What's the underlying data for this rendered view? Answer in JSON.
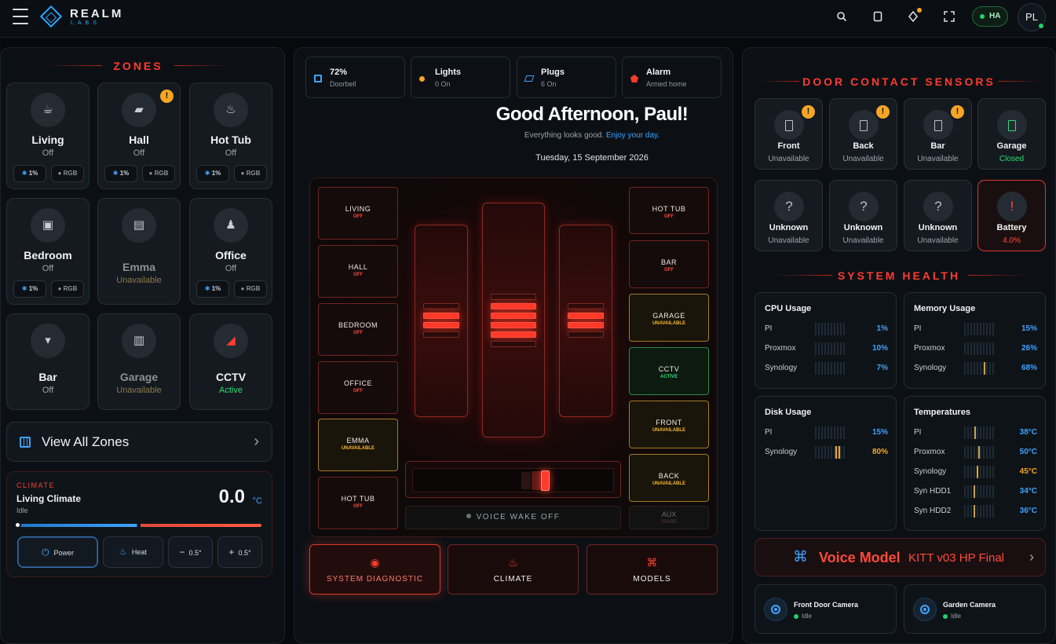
{
  "brand": {
    "name": "REALM",
    "sub": "LABS"
  },
  "header": {
    "ha_label": "HA",
    "avatar_initials": "PL"
  },
  "zones": {
    "title": "ZONES",
    "items": [
      {
        "name": "Living",
        "status": "Off",
        "dim": "1%",
        "rgb": "RGB",
        "icon": "teapot-icon"
      },
      {
        "name": "Hall",
        "status": "Off",
        "dim": "1%",
        "rgb": "RGB",
        "icon": "rug-icon",
        "warn": "!"
      },
      {
        "name": "Hot Tub",
        "status": "Off",
        "dim": "1%",
        "rgb": "RGB",
        "icon": "hot-tub-icon"
      },
      {
        "name": "Bedroom",
        "status": "Off",
        "dim": "1%",
        "rgb": "RGB",
        "icon": "frame-icon"
      },
      {
        "name": "Emma",
        "status": "Unavailable",
        "icon": "dresser-icon"
      },
      {
        "name": "Office",
        "status": "Off",
        "dim": "1%",
        "rgb": "RGB",
        "icon": "desk-lamp-icon"
      },
      {
        "name": "Bar",
        "status": "Off",
        "icon": "cocktail-icon"
      },
      {
        "name": "Garage",
        "status": "Unavailable",
        "icon": "garage-door-icon"
      },
      {
        "name": "CCTV",
        "status": "Active",
        "icon": "camera-icon"
      }
    ],
    "view_all": "View All Zones"
  },
  "climate": {
    "tag": "CLIMATE",
    "name": "Living Climate",
    "state": "Idle",
    "temp": "0.0",
    "unit": "°C",
    "buttons": {
      "power": "Power",
      "heat": "Heat",
      "minus": "0.5°",
      "plus": "0.5°"
    }
  },
  "quick_stats": [
    {
      "title": "72%",
      "value": "Doorbell",
      "icon": "battery-icon",
      "color": "#3fa3ff"
    },
    {
      "title": "Lights",
      "value": "0 On",
      "icon": "bulb-icon",
      "color": "#f5a623"
    },
    {
      "title": "Plugs",
      "value": "6 On",
      "icon": "plug-icon",
      "color": "#3fa3ff"
    },
    {
      "title": "Alarm",
      "value": "Armed home",
      "icon": "shield-icon",
      "color": "#ff3b2f"
    }
  ],
  "greeting": {
    "title": "Good Afternoon, Paul!",
    "sub": "Everything looks good.",
    "sub_highlight": "Enjoy your day.",
    "date": "Tuesday, 15 September 2026"
  },
  "stage": {
    "left": [
      {
        "name": "LIVING",
        "state": "OFF"
      },
      {
        "name": "HALL",
        "state": "OFF"
      },
      {
        "name": "BEDROOM",
        "state": "OFF"
      },
      {
        "name": "OFFICE",
        "state": "OFF"
      },
      {
        "name": "EMMA",
        "state": "UNAVAILABLE"
      },
      {
        "name": "HOT TUB",
        "state": "OFF"
      }
    ],
    "right": [
      {
        "name": "HOT TUB",
        "state": "OFF"
      },
      {
        "name": "BAR",
        "state": "OFF"
      },
      {
        "name": "GARAGE",
        "state": "UNAVAILABLE"
      },
      {
        "name": "CCTV",
        "state": "ACTIVE"
      },
      {
        "name": "FRONT",
        "state": "UNAVAILABLE"
      },
      {
        "name": "BACK",
        "state": "UNAVAILABLE"
      }
    ],
    "voice_wake": "VOICE WAKE OFF",
    "aux": {
      "label": "AUX",
      "sub": "SPARE"
    }
  },
  "actions": [
    {
      "label": "SYSTEM DIAGNOSTIC",
      "icon": "record-icon"
    },
    {
      "label": "CLIMATE",
      "icon": "flame-icon"
    },
    {
      "label": "MODELS",
      "icon": "command-icon"
    }
  ],
  "door_sensors": {
    "title": "DOOR CONTACT SENSORS",
    "items": [
      {
        "name": "Front",
        "status": "Unavailable",
        "warn": "!"
      },
      {
        "name": "Back",
        "status": "Unavailable",
        "warn": "!"
      },
      {
        "name": "Bar",
        "status": "Unavailable",
        "warn": "!"
      },
      {
        "name": "Garage",
        "status": "Closed"
      },
      {
        "name": "Unknown",
        "status": "Unavailable",
        "glyph": "?"
      },
      {
        "name": "Unknown",
        "status": "Unavailable",
        "glyph": "?"
      },
      {
        "name": "Unknown",
        "status": "Unavailable",
        "glyph": "?"
      },
      {
        "name": "Battery",
        "status": "4.0%",
        "glyph": "!"
      }
    ]
  },
  "system_health": {
    "title": "SYSTEM HEALTH",
    "cpu": {
      "title": "CPU Usage",
      "rows": [
        {
          "label": "PI",
          "value": "1%"
        },
        {
          "label": "Proxmox",
          "value": "10%"
        },
        {
          "label": "Synology",
          "value": "7%"
        }
      ]
    },
    "memory": {
      "title": "Memory Usage",
      "rows": [
        {
          "label": "PI",
          "value": "15%"
        },
        {
          "label": "Proxmox",
          "value": "26%"
        },
        {
          "label": "Synology",
          "value": "68%"
        }
      ]
    },
    "disk": {
      "title": "Disk Usage",
      "rows": [
        {
          "label": "PI",
          "value": "15%"
        },
        {
          "label": "Synology",
          "value": "80%"
        }
      ]
    },
    "temps": {
      "title": "Temperatures",
      "rows": [
        {
          "label": "PI",
          "value": "38°C"
        },
        {
          "label": "Proxmox",
          "value": "50°C"
        },
        {
          "label": "Synology",
          "value": "45°C"
        },
        {
          "label": "Syn HDD1",
          "value": "34°C"
        },
        {
          "label": "Syn HDD2",
          "value": "36°C"
        }
      ]
    }
  },
  "voice_model": {
    "label": "Voice Model",
    "value": "KITT v03 HP Final"
  },
  "cameras": [
    {
      "name": "Front Door Camera",
      "status": "Idle"
    },
    {
      "name": "Garden Camera",
      "status": "Idle"
    }
  ]
}
